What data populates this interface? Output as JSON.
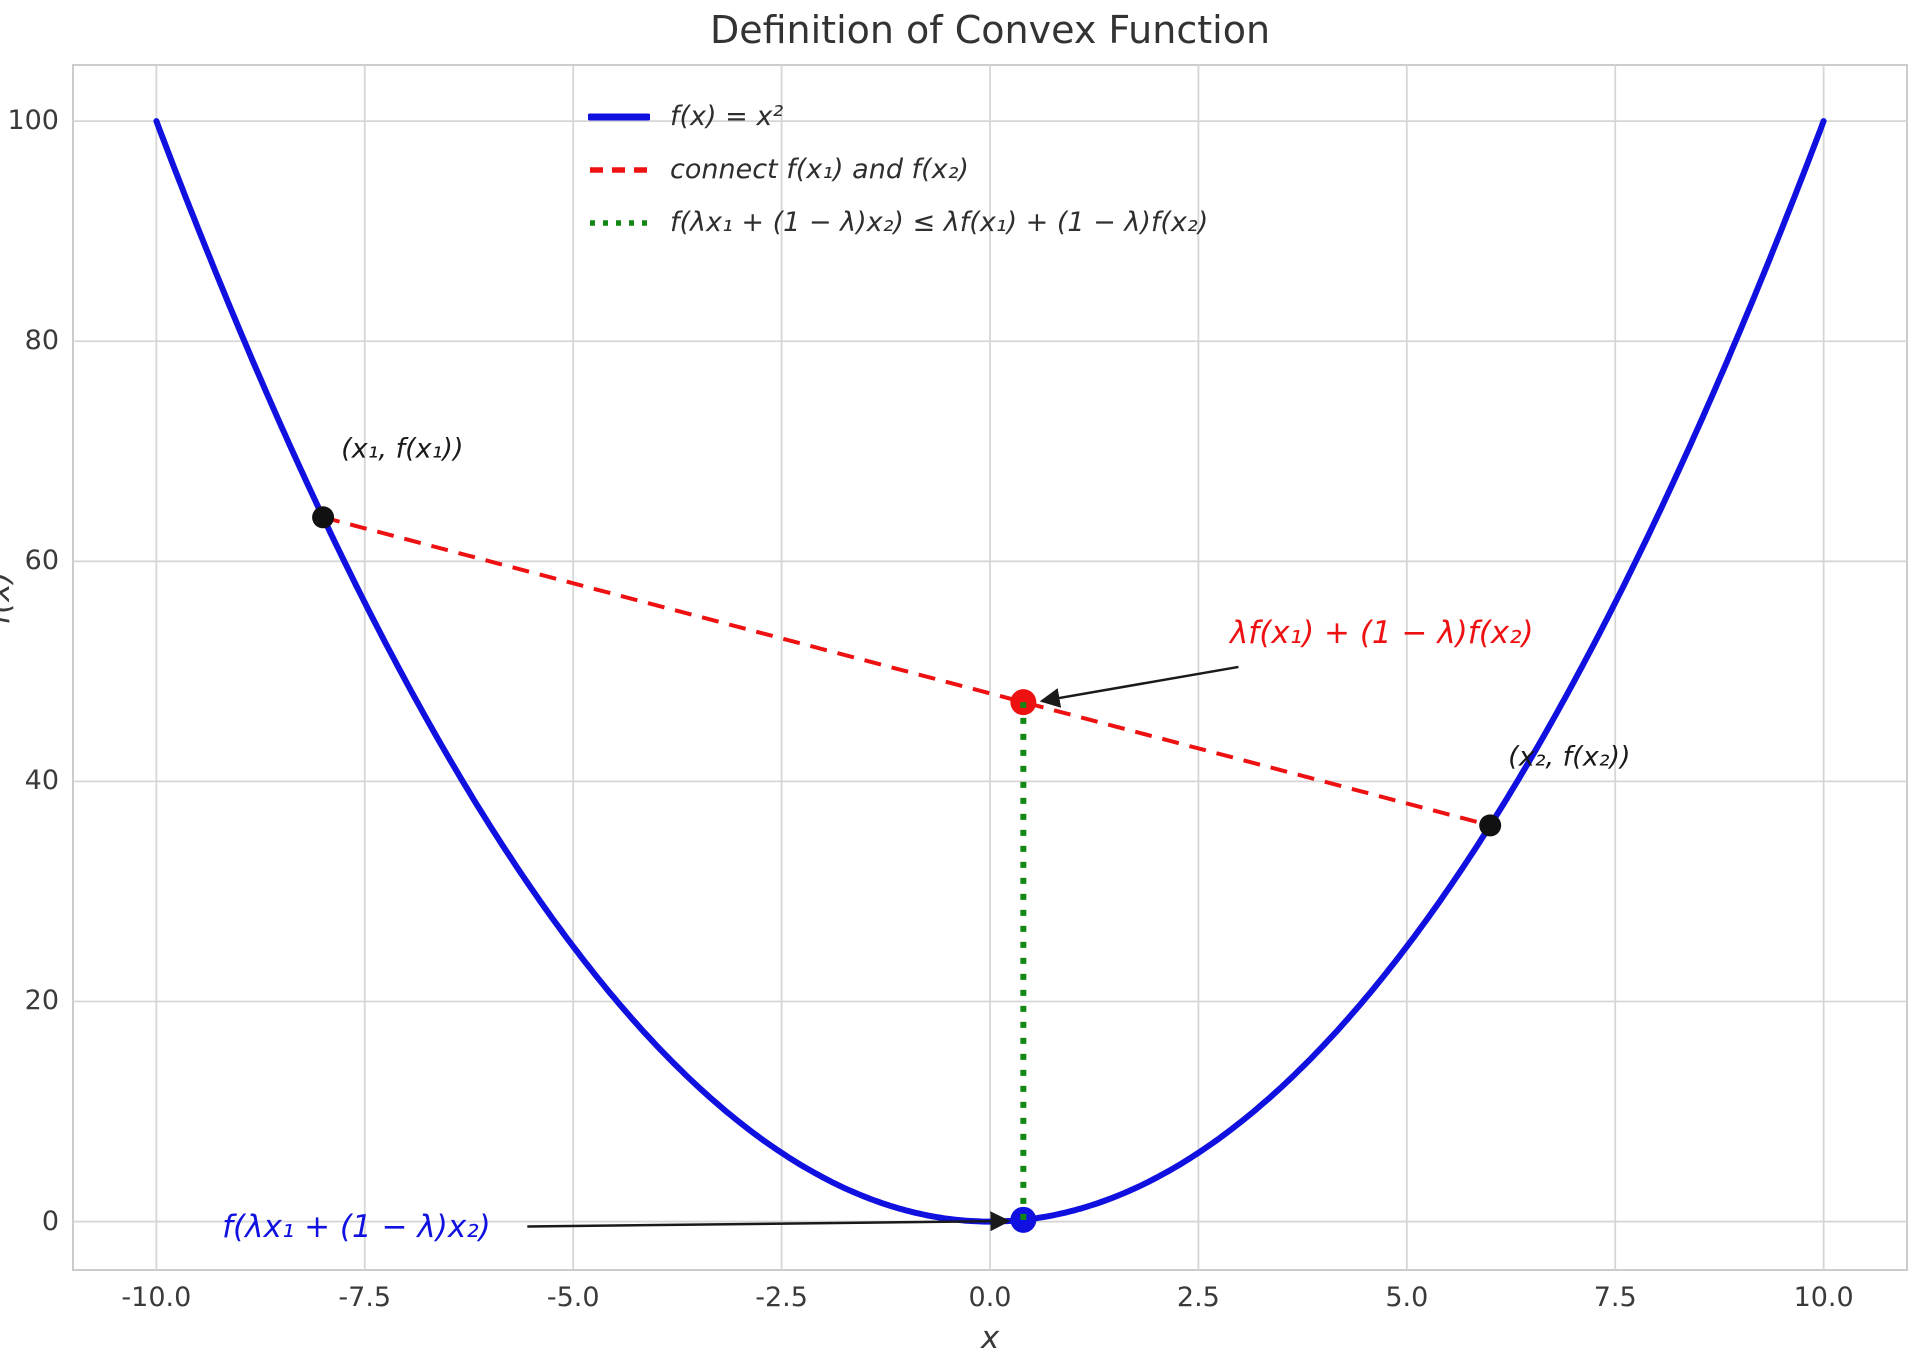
{
  "chart_data": {
    "type": "line",
    "title": "Definition of Convex Function",
    "xlabel": "x",
    "ylabel": "f(x)",
    "xlim": [
      -11,
      11
    ],
    "ylim": [
      -4.4,
      105.1
    ],
    "grid": true,
    "background": "#ffffff",
    "grid_color": "#d6d6d6",
    "axis_color": "#cccccc",
    "text_color": "#3a3a3a",
    "colors": {
      "curve_blue": "#1010e0",
      "chord_red": "#ee1111",
      "inequality_green": "#128812",
      "point_black": "#111111",
      "arrow_black": "#1a1a1a"
    },
    "x_ticks": [
      {
        "value": -10,
        "label": "-10.0"
      },
      {
        "value": -7.5,
        "label": "-7.5"
      },
      {
        "value": -5,
        "label": "-5.0"
      },
      {
        "value": -2.5,
        "label": "-2.5"
      },
      {
        "value": 0,
        "label": "0.0"
      },
      {
        "value": 2.5,
        "label": "2.5"
      },
      {
        "value": 5,
        "label": "5.0"
      },
      {
        "value": 7.5,
        "label": "7.5"
      },
      {
        "value": 10,
        "label": "10.0"
      }
    ],
    "y_ticks": [
      {
        "value": 0,
        "label": "0"
      },
      {
        "value": 20,
        "label": "20"
      },
      {
        "value": 40,
        "label": "40"
      },
      {
        "value": 60,
        "label": "60"
      },
      {
        "value": 80,
        "label": "80"
      },
      {
        "value": 100,
        "label": "100"
      }
    ],
    "legend": {
      "frame": false,
      "position": "upper center",
      "entries": [
        {
          "label": "f(x) = x²",
          "style": "solid",
          "color": "#1010e0"
        },
        {
          "label": "connect f(x₁) and f(x₂)",
          "style": "dashed",
          "color": "#ee1111"
        },
        {
          "label": "f(λx₁ + (1 − λ)x₂) ≤ λf(x₁) + (1 − λ)f(x₂)",
          "style": "dotted",
          "color": "#128812"
        }
      ]
    },
    "series": [
      {
        "name": "f(x) = x²",
        "kind": "function",
        "expr": "x*x",
        "x_range": [
          -10,
          10
        ],
        "color": "#1010e0",
        "style": "solid",
        "width": 6,
        "above_points": false
      },
      {
        "name": "connect f(x₁) and f(x₂)",
        "kind": "segment",
        "points": [
          [
            -8,
            64
          ],
          [
            6,
            36
          ]
        ],
        "color": "#ee1111",
        "style": "dashed",
        "width": 4,
        "above_points": false
      },
      {
        "name": "f(λx₁ + (1 − λ)x₂) ≤ λf(x₁) + (1 − λ)f(x₂)",
        "kind": "segment",
        "points": [
          [
            0.4,
            0.16
          ],
          [
            0.4,
            47.2
          ]
        ],
        "color": "#128812",
        "style": "dotted",
        "width": 6,
        "above_points": true
      }
    ],
    "points": [
      {
        "name": "point-x1",
        "x": -8,
        "y": 64,
        "color": "#111111",
        "radius": 11
      },
      {
        "name": "point-x2",
        "x": 6,
        "y": 36,
        "color": "#111111",
        "radius": 11
      },
      {
        "name": "point-chord-lambda",
        "x": 0.4,
        "y": 47.2,
        "color": "#ee1111",
        "radius": 13
      },
      {
        "name": "point-curve-lambda",
        "x": 0.4,
        "y": 0.16,
        "color": "#1010e0",
        "radius": 13
      }
    ],
    "annotations": [
      {
        "text": "(x₁, f(x₁))",
        "color": "#1a1a1a",
        "x": -7.05,
        "y": 70.2,
        "font_size": 27,
        "arrow": null
      },
      {
        "text": "(x₂, f(x₂))",
        "color": "#1a1a1a",
        "x": 6.95,
        "y": 42.2,
        "font_size": 27,
        "arrow": null
      },
      {
        "text": "λf(x₁) + (1 − λ)f(x₂)",
        "color": "#ee1111",
        "x": 4.7,
        "y": 53.5,
        "font_size": 31,
        "arrow": {
          "from": [
            2.98,
            50.4
          ],
          "to": [
            0.62,
            47.3
          ]
        }
      },
      {
        "text": "f(λx₁ + (1 − λ)x₂)",
        "color": "#1010e0",
        "x": -7.6,
        "y": -0.5,
        "font_size": 31,
        "arrow": {
          "from": [
            -5.55,
            -0.45
          ],
          "to": [
            0.22,
            0.05
          ]
        }
      }
    ]
  }
}
